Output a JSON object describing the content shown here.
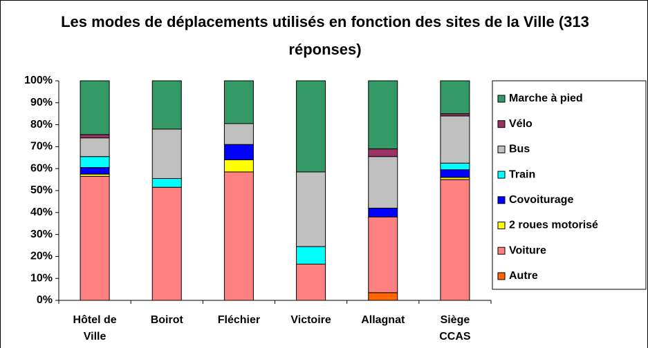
{
  "chart_data": {
    "type": "stacked_bar",
    "title": "Les modes de déplacements utilisés en fonction des sites de la Ville (313 réponses)",
    "categories": [
      "Hôtel de Ville",
      "Boirot",
      "Fléchier",
      "Victoire",
      "Allagnat",
      "Siège CCAS"
    ],
    "series": [
      {
        "name": "Autre",
        "color": "#ff6600",
        "values": [
          0,
          0,
          0,
          0,
          3.5,
          0
        ]
      },
      {
        "name": "Voiture",
        "color": "#ff8080",
        "values": [
          56.5,
          51.5,
          58.5,
          16.5,
          34.5,
          55
        ]
      },
      {
        "name": "2 roues motorisé",
        "color": "#ffff00",
        "values": [
          1,
          0,
          5.5,
          0,
          0,
          1
        ]
      },
      {
        "name": "Covoiturage",
        "color": "#0000ff",
        "values": [
          3,
          0,
          7,
          0,
          4,
          3.5
        ]
      },
      {
        "name": "Train",
        "color": "#00ffff",
        "values": [
          5,
          4,
          0,
          8,
          0,
          3
        ]
      },
      {
        "name": "Bus",
        "color": "#c0c0c0",
        "values": [
          8.5,
          22.5,
          9.5,
          34,
          23.5,
          21.5
        ]
      },
      {
        "name": "Vélo",
        "color": "#993366",
        "values": [
          1.5,
          0,
          0,
          0,
          3.5,
          1
        ]
      },
      {
        "name": "Marche à pied",
        "color": "#339966",
        "values": [
          24.5,
          22,
          19.5,
          41.5,
          31,
          15
        ]
      }
    ],
    "ylim": [
      0,
      100
    ],
    "yticks": [
      {
        "value": 0,
        "label": "0%"
      },
      {
        "value": 10,
        "label": "10%"
      },
      {
        "value": 20,
        "label": "20%"
      },
      {
        "value": 30,
        "label": "30%"
      },
      {
        "value": 40,
        "label": "40%"
      },
      {
        "value": 50,
        "label": "50%"
      },
      {
        "value": 60,
        "label": "60%"
      },
      {
        "value": 70,
        "label": "70%"
      },
      {
        "value": 80,
        "label": "80%"
      },
      {
        "value": 90,
        "label": "90%"
      },
      {
        "value": 100,
        "label": "100%"
      }
    ],
    "legend": "right"
  }
}
